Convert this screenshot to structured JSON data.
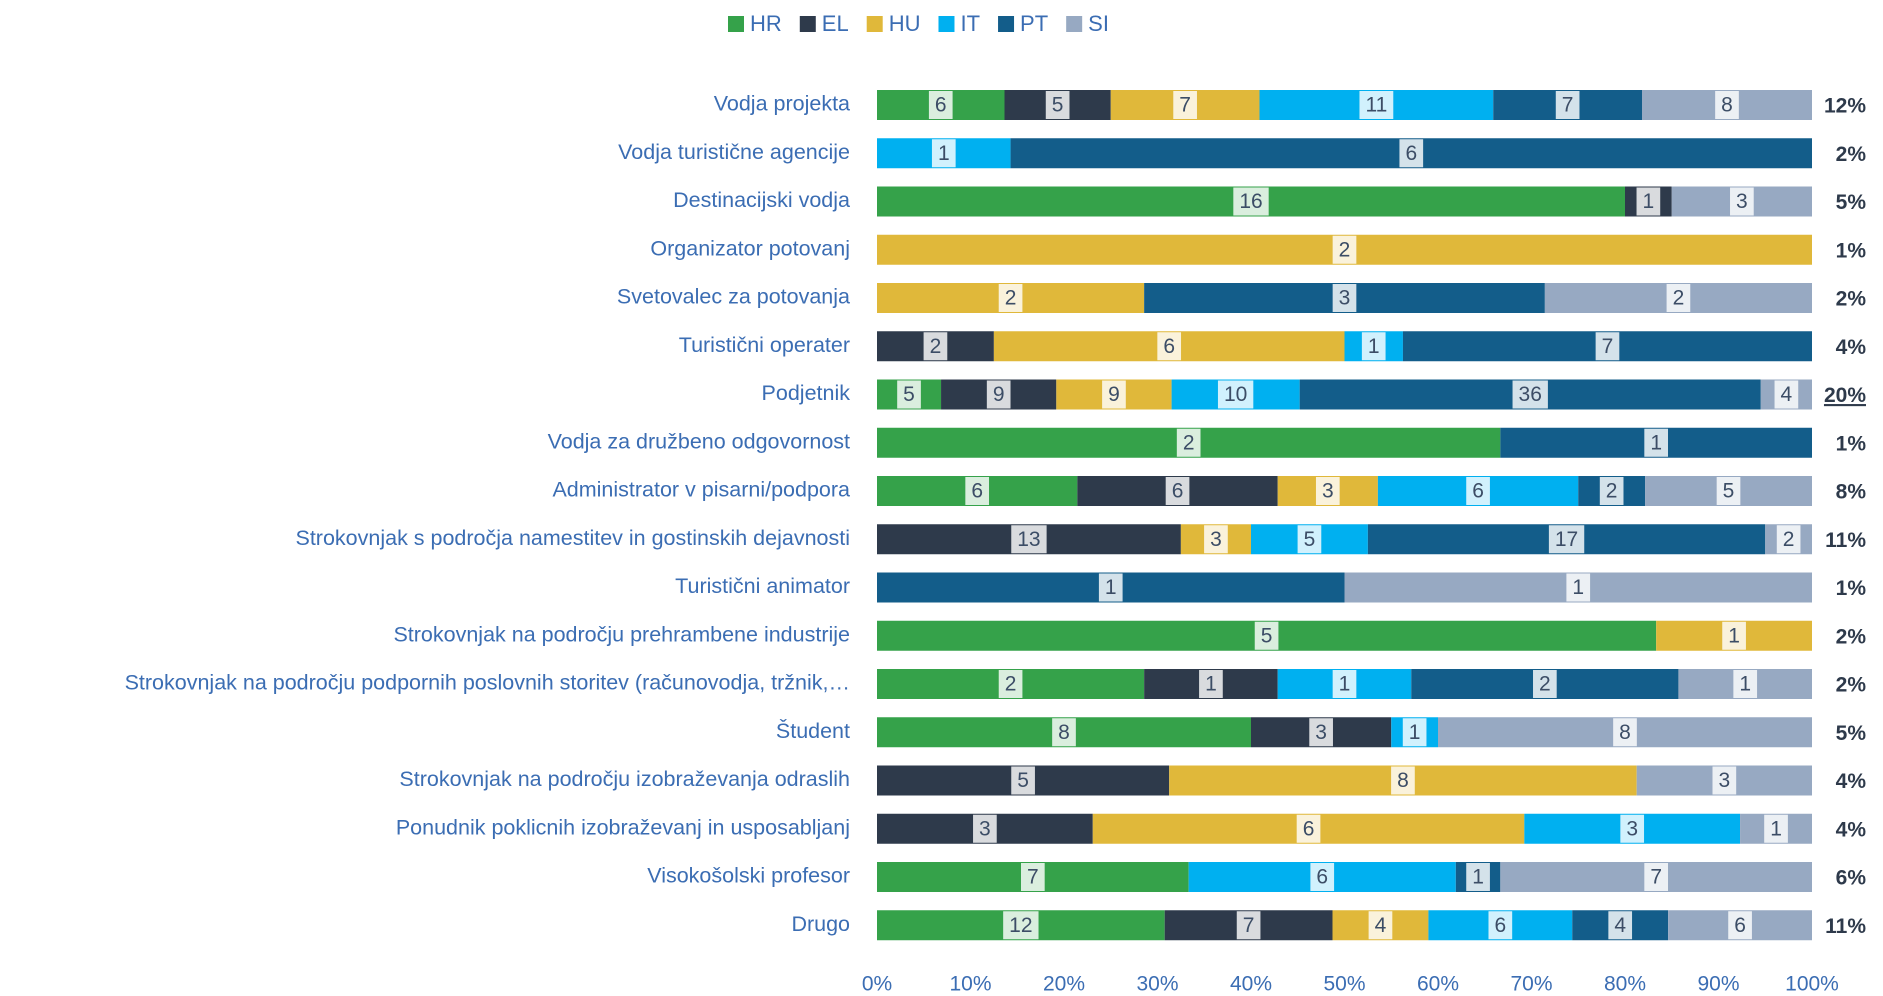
{
  "chart_data": {
    "type": "bar",
    "orientation": "horizontal",
    "stacked": "percent",
    "categories": [
      "Vodja projekta",
      "Vodja turistične agencije",
      "Destinacijski vodja",
      "Organizator potovanj",
      "Svetovalec za potovanja",
      "Turistični operater",
      "Podjetnik",
      "Vodja za družbeno odgovornost",
      "Administrator v pisarni/podpora",
      "Strokovnjak s področja namestitev in gostinskih dejavnosti",
      "Turistični animator",
      "Strokovnjak na področju prehrambene industrije",
      "Strokovnjak na področju podpornih poslovnih storitev (računovodja, tržnik,…",
      "Študent",
      "Strokovnjak na področju izobraževanja odraslih",
      "Ponudnik poklicnih izobraževanj in usposabljanj",
      "Visokošolski profesor",
      "Drugo"
    ],
    "series": [
      {
        "name": "HR",
        "color": "#35a24a",
        "values": [
          6,
          null,
          16,
          null,
          null,
          null,
          5,
          2,
          6,
          null,
          null,
          5,
          2,
          8,
          null,
          null,
          7,
          12
        ]
      },
      {
        "name": "EL",
        "color": "#2e3a4b",
        "values": [
          5,
          null,
          1,
          null,
          null,
          2,
          9,
          null,
          6,
          13,
          null,
          null,
          1,
          3,
          5,
          3,
          null,
          7
        ]
      },
      {
        "name": "HU",
        "color": "#e0b83a",
        "values": [
          7,
          null,
          null,
          2,
          2,
          6,
          9,
          null,
          3,
          3,
          null,
          1,
          null,
          null,
          8,
          6,
          null,
          4
        ]
      },
      {
        "name": "IT",
        "color": "#00b0f0",
        "values": [
          11,
          1,
          null,
          null,
          null,
          1,
          10,
          null,
          6,
          5,
          null,
          null,
          1,
          1,
          null,
          3,
          6,
          6
        ]
      },
      {
        "name": "PT",
        "color": "#135d8a",
        "values": [
          7,
          6,
          null,
          null,
          3,
          7,
          36,
          1,
          2,
          17,
          1,
          null,
          2,
          null,
          null,
          null,
          1,
          4
        ]
      },
      {
        "name": "SI",
        "color": "#97a9c2",
        "values": [
          8,
          null,
          3,
          null,
          2,
          null,
          4,
          null,
          5,
          2,
          1,
          null,
          1,
          8,
          3,
          1,
          7,
          6
        ]
      }
    ],
    "share_labels": [
      "12%",
      "2%",
      "5%",
      "1%",
      "2%",
      "4%",
      "20%",
      "1%",
      "8%",
      "11%",
      "1%",
      "2%",
      "2%",
      "5%",
      "4%",
      "4%",
      "6%",
      "11%"
    ],
    "underlined_share": 6,
    "xlim": [
      0,
      100
    ],
    "xticks": [
      {
        "value": 0,
        "label": "0%"
      },
      {
        "value": 10,
        "label": "10%"
      },
      {
        "value": 20,
        "label": "20%"
      },
      {
        "value": 30,
        "label": "30%"
      },
      {
        "value": 40,
        "label": "40%"
      },
      {
        "value": 50,
        "label": "50%"
      },
      {
        "value": 60,
        "label": "60%"
      },
      {
        "value": 70,
        "label": "70%"
      },
      {
        "value": 80,
        "label": "80%"
      },
      {
        "value": 90,
        "label": "90%"
      },
      {
        "value": 100,
        "label": "100%"
      }
    ],
    "legend": "top"
  }
}
